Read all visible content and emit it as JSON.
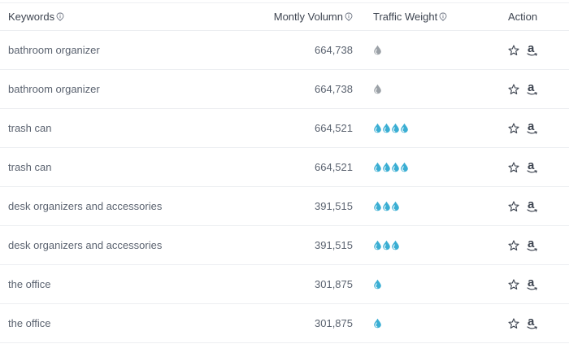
{
  "columns": {
    "keywords": "Keywords",
    "monthly_volume": "Montly Volumn",
    "traffic_weight": "Traffic Weight",
    "action": "Action"
  },
  "colors": {
    "drop_active": "#3aaed3",
    "drop_gray": "#9aa0a6",
    "text": "#5b6370",
    "header_text": "#3d4450"
  },
  "icons": {
    "info": "info-icon",
    "drop": "water-drop-icon",
    "star": "star-outline-icon",
    "amazon": "amazon-icon"
  },
  "rows": [
    {
      "keyword": "bathroom organizer",
      "volume": "664,738",
      "weight": 1,
      "weight_color": "gray"
    },
    {
      "keyword": "bathroom organizer",
      "volume": "664,738",
      "weight": 1,
      "weight_color": "gray"
    },
    {
      "keyword": "trash can",
      "volume": "664,521",
      "weight": 4,
      "weight_color": "blue"
    },
    {
      "keyword": "trash can",
      "volume": "664,521",
      "weight": 4,
      "weight_color": "blue"
    },
    {
      "keyword": "desk organizers and accessories",
      "volume": "391,515",
      "weight": 3,
      "weight_color": "blue"
    },
    {
      "keyword": "desk organizers and accessories",
      "volume": "391,515",
      "weight": 3,
      "weight_color": "blue"
    },
    {
      "keyword": "the office",
      "volume": "301,875",
      "weight": 1,
      "weight_color": "blue"
    },
    {
      "keyword": "the office",
      "volume": "301,875",
      "weight": 1,
      "weight_color": "blue"
    }
  ]
}
